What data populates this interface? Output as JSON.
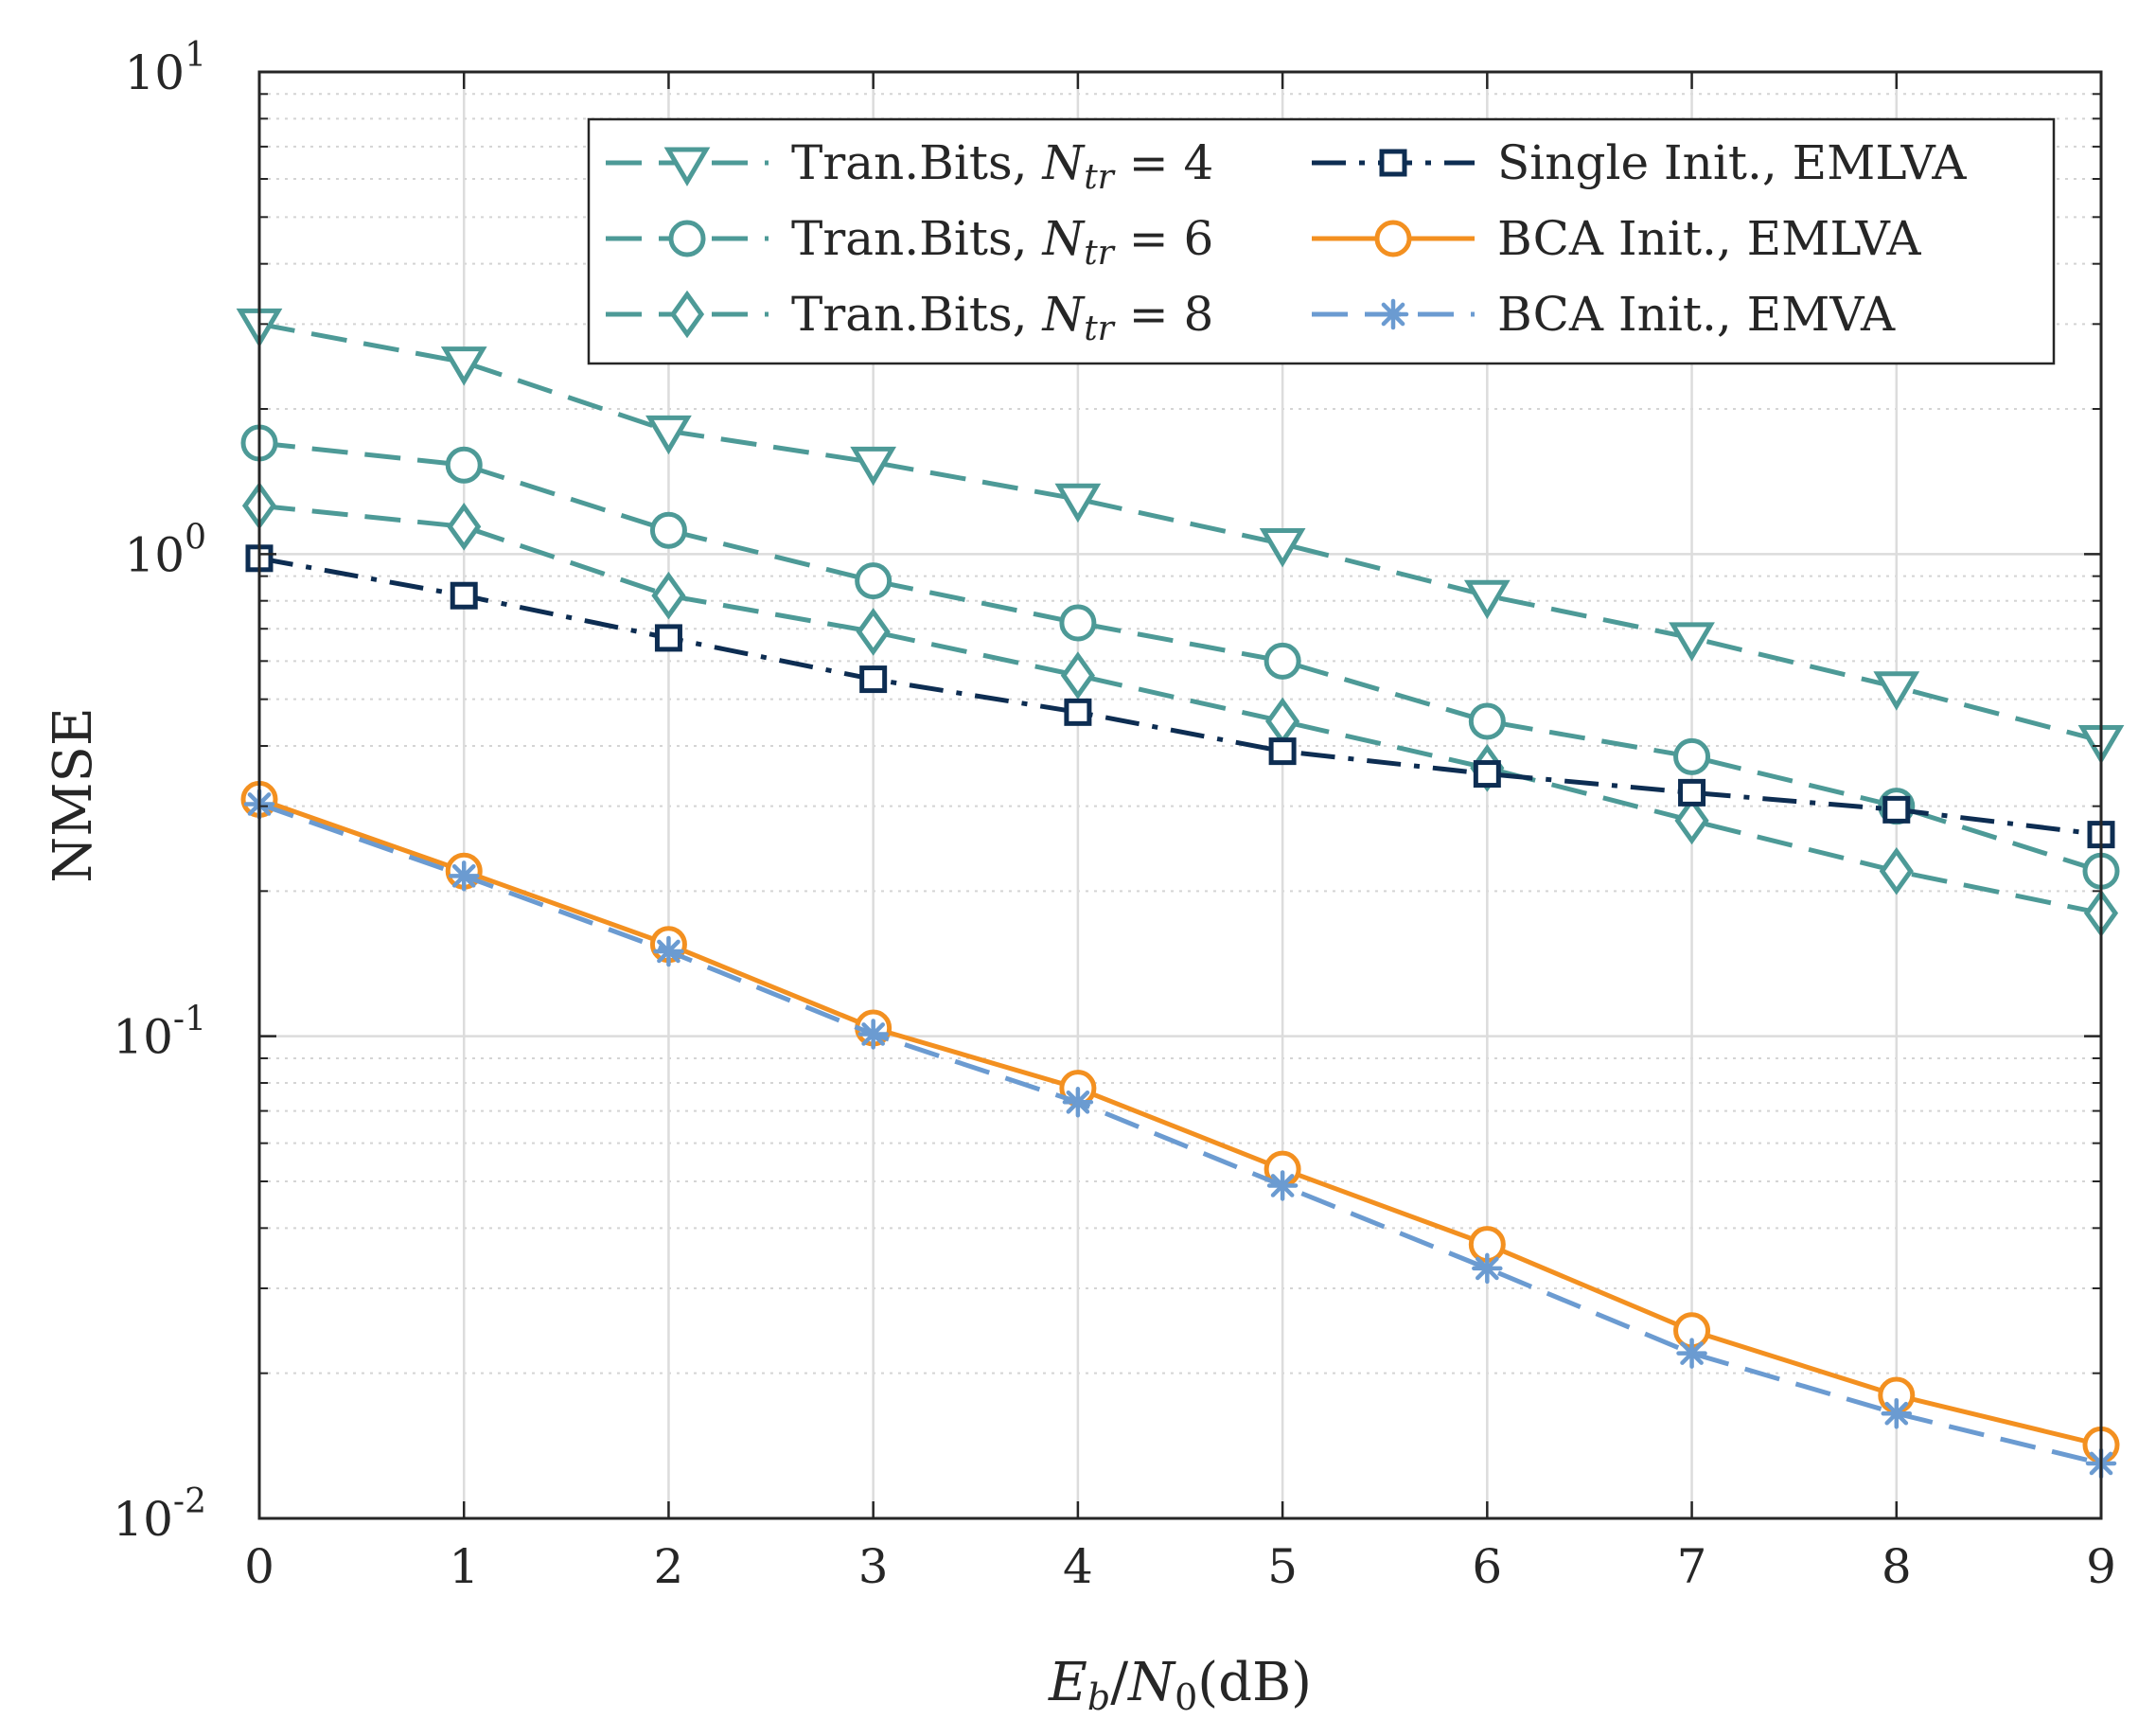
{
  "chart_data": {
    "type": "line",
    "title": "",
    "xlabel": "E_b/N_0(dB)",
    "xlabel_parts": {
      "e": "E",
      "e_sub": "b",
      "slash": "/",
      "n": "N",
      "n_sub": "0",
      "unit": "(dB)"
    },
    "ylabel": "NMSE",
    "x": [
      0,
      1,
      2,
      3,
      4,
      5,
      6,
      7,
      8,
      9
    ],
    "xlim": [
      0,
      9
    ],
    "ylim": [
      0.01,
      10
    ],
    "yscale": "log",
    "grid": true,
    "xticks": [
      "0",
      "1",
      "2",
      "3",
      "4",
      "5",
      "6",
      "7",
      "8",
      "9"
    ],
    "yticks": [
      {
        "value": 0.01,
        "base": "10",
        "exp": "-2"
      },
      {
        "value": 0.1,
        "base": "10",
        "exp": "-1"
      },
      {
        "value": 1,
        "base": "10",
        "exp": "0"
      },
      {
        "value": 10,
        "base": "10",
        "exp": "1"
      }
    ],
    "legend_position": "top-right",
    "series": [
      {
        "name": "Tran.Bits, N_tr = 4",
        "label_main": "Tran.Bits, ",
        "label_var": "N",
        "label_sub": "tr",
        "label_eq": " = 4",
        "values": [
          3.0,
          2.5,
          1.8,
          1.55,
          1.3,
          1.05,
          0.82,
          0.67,
          0.53,
          0.41
        ],
        "color": "#4d9a97",
        "dash": "dashed",
        "marker": "triangle-down"
      },
      {
        "name": "Tran.Bits, N_tr = 6",
        "label_main": "Tran.Bits, ",
        "label_var": "N",
        "label_sub": "tr",
        "label_eq": " = 6",
        "values": [
          1.7,
          1.53,
          1.12,
          0.88,
          0.72,
          0.6,
          0.45,
          0.38,
          0.3,
          0.22
        ],
        "color": "#4d9a97",
        "dash": "dashed",
        "marker": "circle"
      },
      {
        "name": "Tran.Bits, N_tr = 8",
        "label_main": "Tran.Bits, ",
        "label_var": "N",
        "label_sub": "tr",
        "label_eq": " = 8",
        "values": [
          1.26,
          1.14,
          0.82,
          0.69,
          0.56,
          0.45,
          0.36,
          0.28,
          0.22,
          0.18
        ],
        "color": "#4d9a97",
        "dash": "dashed",
        "marker": "diamond"
      },
      {
        "name": "Single Init., EMLVA",
        "label_main": "Single Init., EMLVA",
        "values": [
          0.98,
          0.82,
          0.67,
          0.55,
          0.47,
          0.39,
          0.35,
          0.32,
          0.295,
          0.262
        ],
        "color": "#0d2d52",
        "dash": "dashdot",
        "marker": "square"
      },
      {
        "name": "BCA Init., EMLVA",
        "label_main": "BCA Init., EMLVA",
        "values": [
          0.31,
          0.22,
          0.155,
          0.104,
          0.078,
          0.053,
          0.037,
          0.0245,
          0.018,
          0.0142
        ],
        "color": "#f39020",
        "dash": "solid",
        "marker": "circle"
      },
      {
        "name": "BCA Init., EMVA",
        "label_main": "BCA Init., EMVA",
        "values": [
          0.303,
          0.215,
          0.15,
          0.101,
          0.073,
          0.049,
          0.033,
          0.022,
          0.0165,
          0.013
        ],
        "color": "#6b9bd1",
        "dash": "dashed",
        "marker": "asterisk"
      }
    ]
  }
}
